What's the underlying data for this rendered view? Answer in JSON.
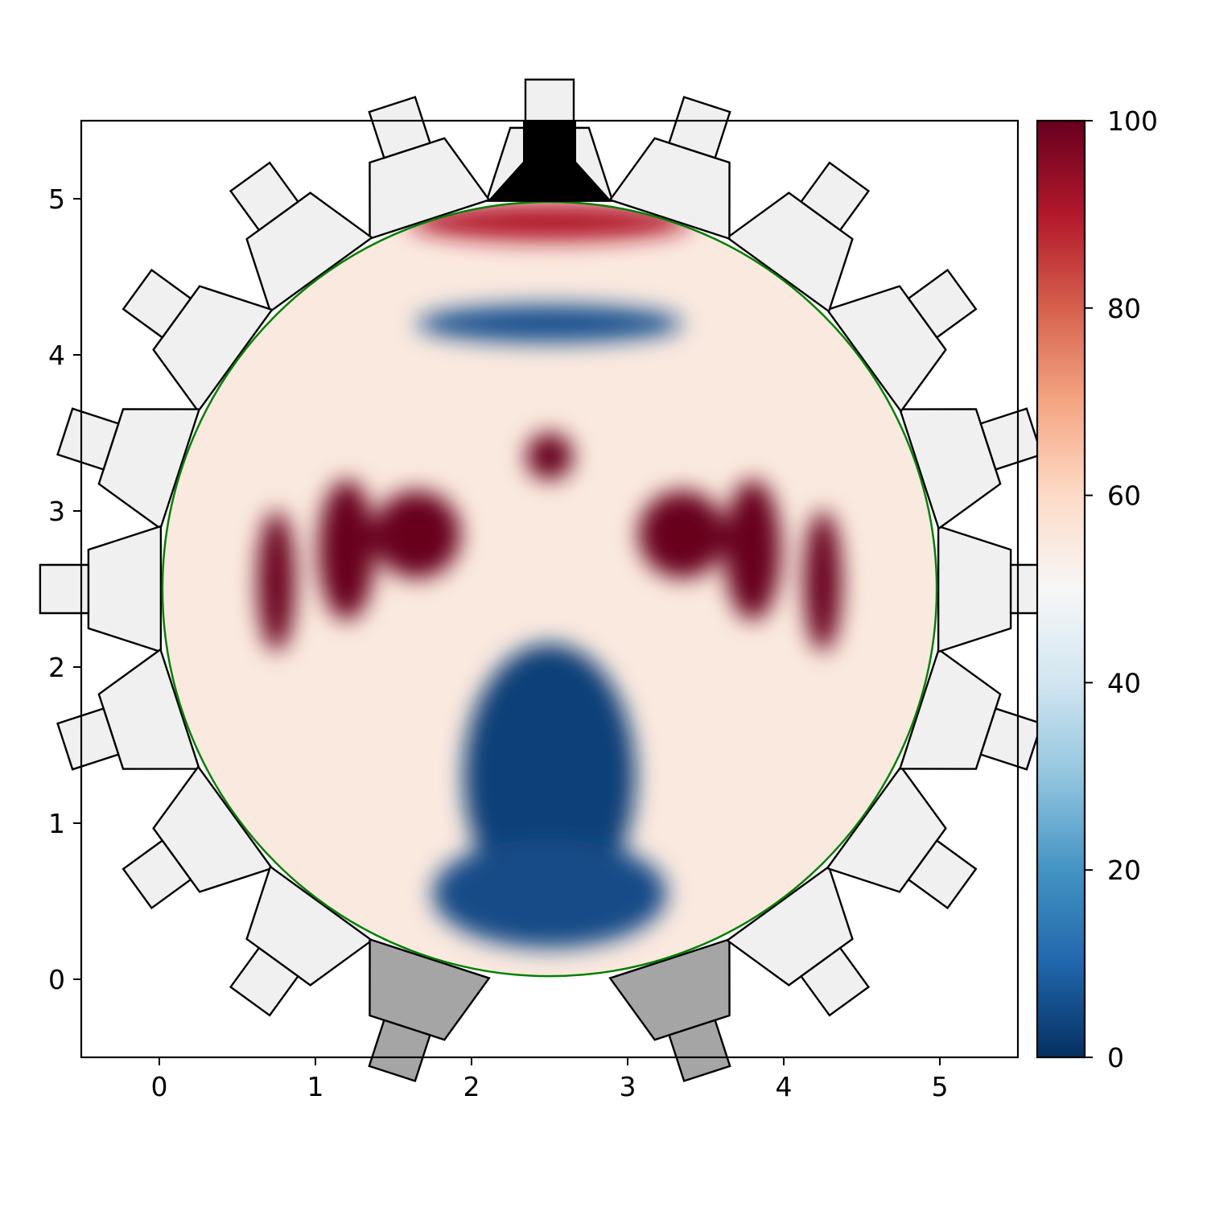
{
  "chart_data": {
    "type": "heatmap",
    "title": "",
    "xlabel": "",
    "ylabel": "",
    "xlim": [
      -0.5,
      5.5
    ],
    "ylim": [
      -0.5,
      5.5
    ],
    "x_ticks": [
      0,
      1,
      2,
      3,
      4,
      5
    ],
    "y_ticks": [
      0,
      1,
      2,
      3,
      4,
      5
    ],
    "colorbar": {
      "colormap": "RdBu_r",
      "min": 0,
      "max": 100,
      "ticks": [
        0,
        20,
        40,
        60,
        80,
        100
      ]
    },
    "domain": {
      "shape": "circle",
      "center": [
        2.5,
        2.5
      ],
      "radius": 2.48,
      "outline_color": "#008000"
    },
    "grid": false,
    "legend": "none",
    "electrode_count": 20,
    "colors": {
      "electrode_fill": "#f0f0f0",
      "highlighted_electrode_fill": "#a5a5a5",
      "top_feed": "#000000"
    },
    "field_blobs": [
      {
        "x": 2.5,
        "y": 1.3,
        "sx": 0.55,
        "sy": 0.85,
        "value": 3
      },
      {
        "x": 2.5,
        "y": 0.55,
        "sx": 0.75,
        "sy": 0.35,
        "value": 5
      },
      {
        "x": 2.5,
        "y": 4.2,
        "sx": 0.85,
        "sy": 0.12,
        "value": 6
      },
      {
        "x": 2.5,
        "y": 3.35,
        "sx": 0.15,
        "sy": 0.15,
        "value": 100
      },
      {
        "x": 1.65,
        "y": 2.85,
        "sx": 0.28,
        "sy": 0.28,
        "value": 100
      },
      {
        "x": 3.35,
        "y": 2.85,
        "sx": 0.28,
        "sy": 0.28,
        "value": 100
      },
      {
        "x": 1.2,
        "y": 2.75,
        "sx": 0.18,
        "sy": 0.45,
        "value": 100
      },
      {
        "x": 3.8,
        "y": 2.75,
        "sx": 0.18,
        "sy": 0.45,
        "value": 100
      },
      {
        "x": 0.75,
        "y": 2.55,
        "sx": 0.12,
        "sy": 0.45,
        "value": 100
      },
      {
        "x": 4.25,
        "y": 2.55,
        "sx": 0.12,
        "sy": 0.45,
        "value": 100
      },
      {
        "x": 2.5,
        "y": 4.85,
        "sx": 0.9,
        "sy": 0.12,
        "value": 90
      }
    ],
    "background_value": 55
  }
}
